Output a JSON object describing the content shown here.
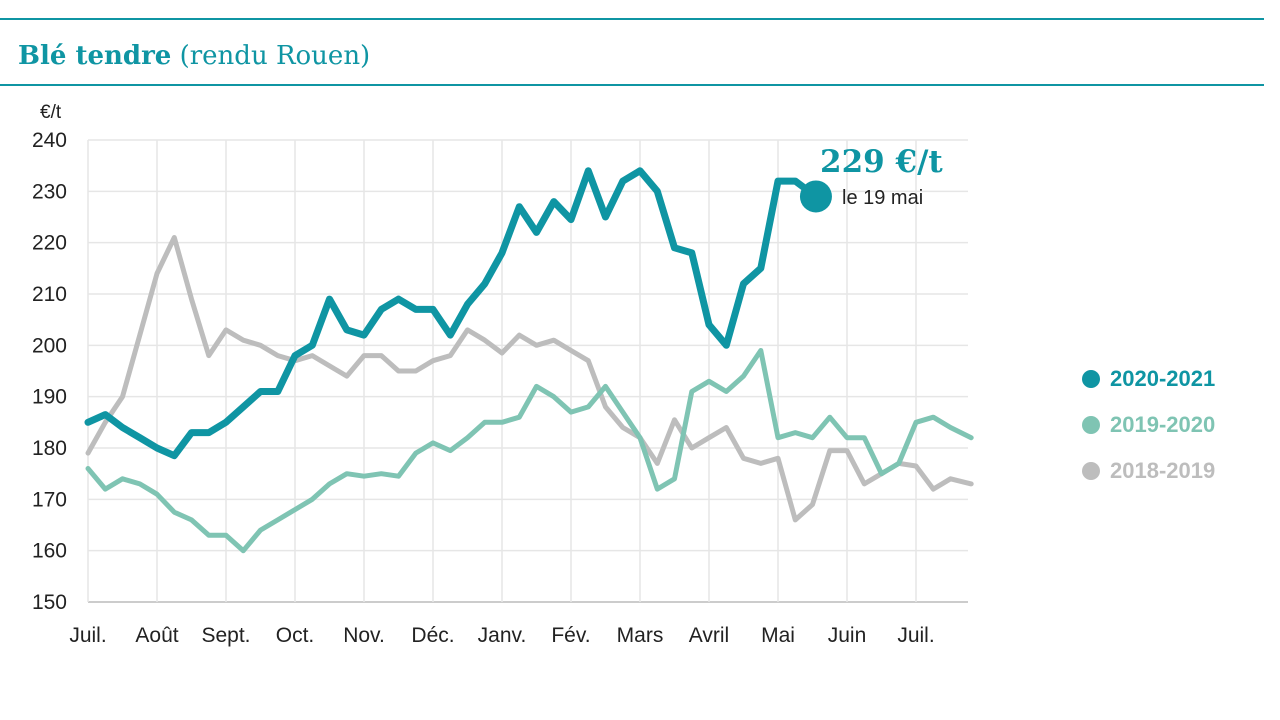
{
  "title": {
    "main": "Blé tendre",
    "sub": "(rendu Rouen)"
  },
  "colors": {
    "accent": "#0f95a3",
    "series_2020_2021": "#0f95a3",
    "series_2019_2020": "#7fc4b3",
    "series_2018_2019": "#bdbdbd",
    "grid": "#e6e6e6",
    "axis": "#cccccc"
  },
  "annotation": {
    "value": "229 €/t",
    "date": "le 19 mai"
  },
  "chart_data": {
    "type": "line",
    "ylabel": "€/t",
    "xlabel": "",
    "ylim": [
      150,
      240
    ],
    "yticks": [
      150,
      160,
      170,
      180,
      190,
      200,
      210,
      220,
      230,
      240
    ],
    "xlim": [
      0,
      12.8
    ],
    "x_tick_labels": [
      "Juil.",
      "Août",
      "Sept.",
      "Oct.",
      "Nov.",
      "Déc.",
      "Janv.",
      "Fév.",
      "Mars",
      "Avril",
      "Mai",
      "Juin",
      "Juil."
    ],
    "grid": true,
    "legend_position": "right",
    "series": [
      {
        "name": "2020-2021",
        "values": [
          [
            0,
            185
          ],
          [
            0.25,
            186.5
          ],
          [
            0.5,
            184
          ],
          [
            0.75,
            182
          ],
          [
            1.0,
            180
          ],
          [
            1.25,
            178.5
          ],
          [
            1.5,
            183
          ],
          [
            1.75,
            183
          ],
          [
            2.0,
            185
          ],
          [
            2.25,
            188
          ],
          [
            2.5,
            191
          ],
          [
            2.75,
            191
          ],
          [
            3.0,
            198
          ],
          [
            3.25,
            200
          ],
          [
            3.5,
            209
          ],
          [
            3.75,
            203
          ],
          [
            4.0,
            202
          ],
          [
            4.25,
            207
          ],
          [
            4.5,
            209
          ],
          [
            4.75,
            207
          ],
          [
            5.0,
            207
          ],
          [
            5.25,
            202
          ],
          [
            5.5,
            208
          ],
          [
            5.75,
            212
          ],
          [
            6.0,
            218
          ],
          [
            6.25,
            227
          ],
          [
            6.5,
            222
          ],
          [
            6.75,
            228
          ],
          [
            7.0,
            224.5
          ],
          [
            7.25,
            234
          ],
          [
            7.5,
            225
          ],
          [
            7.75,
            232
          ],
          [
            8.0,
            234
          ],
          [
            8.25,
            230
          ],
          [
            8.5,
            219
          ],
          [
            8.75,
            218
          ],
          [
            9.0,
            204
          ],
          [
            9.25,
            200
          ],
          [
            9.5,
            212
          ],
          [
            9.75,
            215
          ],
          [
            10.0,
            232
          ],
          [
            10.25,
            232
          ],
          [
            10.55,
            229
          ]
        ]
      },
      {
        "name": "2019-2020",
        "values": [
          [
            0,
            176
          ],
          [
            0.25,
            172
          ],
          [
            0.5,
            174
          ],
          [
            0.75,
            173
          ],
          [
            1.0,
            171
          ],
          [
            1.25,
            167.5
          ],
          [
            1.5,
            166
          ],
          [
            1.75,
            163
          ],
          [
            2.0,
            163
          ],
          [
            2.25,
            160
          ],
          [
            2.5,
            164
          ],
          [
            2.75,
            166
          ],
          [
            3.0,
            168
          ],
          [
            3.25,
            170
          ],
          [
            3.5,
            173
          ],
          [
            3.75,
            175
          ],
          [
            4.0,
            174.5
          ],
          [
            4.25,
            175
          ],
          [
            4.5,
            174.5
          ],
          [
            4.75,
            179
          ],
          [
            5.0,
            181
          ],
          [
            5.25,
            179.5
          ],
          [
            5.5,
            182
          ],
          [
            5.75,
            185
          ],
          [
            6.0,
            185
          ],
          [
            6.25,
            186
          ],
          [
            6.5,
            192
          ],
          [
            6.75,
            190
          ],
          [
            7.0,
            187
          ],
          [
            7.25,
            188
          ],
          [
            7.5,
            192
          ],
          [
            7.75,
            187
          ],
          [
            8.0,
            182
          ],
          [
            8.25,
            172
          ],
          [
            8.5,
            174
          ],
          [
            8.75,
            191
          ],
          [
            9.0,
            193
          ],
          [
            9.25,
            191
          ],
          [
            9.5,
            194
          ],
          [
            9.75,
            199
          ],
          [
            10.0,
            182
          ],
          [
            10.25,
            183
          ],
          [
            10.5,
            182
          ],
          [
            10.75,
            186
          ],
          [
            11.0,
            182
          ],
          [
            11.25,
            182
          ],
          [
            11.5,
            175
          ],
          [
            11.75,
            177
          ],
          [
            12.0,
            185
          ],
          [
            12.25,
            186
          ],
          [
            12.5,
            184
          ],
          [
            12.8,
            182
          ]
        ]
      },
      {
        "name": "2018-2019",
        "values": [
          [
            0,
            179
          ],
          [
            0.25,
            185
          ],
          [
            0.5,
            190
          ],
          [
            0.75,
            202
          ],
          [
            1.0,
            214
          ],
          [
            1.25,
            221
          ],
          [
            1.5,
            209
          ],
          [
            1.75,
            198
          ],
          [
            2.0,
            203
          ],
          [
            2.25,
            201
          ],
          [
            2.5,
            200
          ],
          [
            2.75,
            198
          ],
          [
            3.0,
            197
          ],
          [
            3.25,
            198
          ],
          [
            3.5,
            196
          ],
          [
            3.75,
            194
          ],
          [
            4.0,
            198
          ],
          [
            4.25,
            198
          ],
          [
            4.5,
            195
          ],
          [
            4.75,
            195
          ],
          [
            5.0,
            197
          ],
          [
            5.25,
            198
          ],
          [
            5.5,
            203
          ],
          [
            5.75,
            201
          ],
          [
            6.0,
            198.5
          ],
          [
            6.25,
            202
          ],
          [
            6.5,
            200
          ],
          [
            6.75,
            201
          ],
          [
            7.0,
            199
          ],
          [
            7.25,
            197
          ],
          [
            7.5,
            188
          ],
          [
            7.75,
            184
          ],
          [
            8.0,
            182
          ],
          [
            8.25,
            177
          ],
          [
            8.5,
            185.5
          ],
          [
            8.75,
            180
          ],
          [
            9.0,
            182
          ],
          [
            9.25,
            184
          ],
          [
            9.5,
            178
          ],
          [
            9.75,
            177
          ],
          [
            10.0,
            178
          ],
          [
            10.25,
            166
          ],
          [
            10.5,
            169
          ],
          [
            10.75,
            179.5
          ],
          [
            11.0,
            179.5
          ],
          [
            11.25,
            173
          ],
          [
            11.5,
            175
          ],
          [
            11.75,
            177
          ],
          [
            12.0,
            176.5
          ],
          [
            12.25,
            172
          ],
          [
            12.5,
            174
          ],
          [
            12.8,
            173
          ]
        ]
      }
    ],
    "highlight_point": {
      "series": "2020-2021",
      "x": 10.55,
      "y": 229
    }
  }
}
